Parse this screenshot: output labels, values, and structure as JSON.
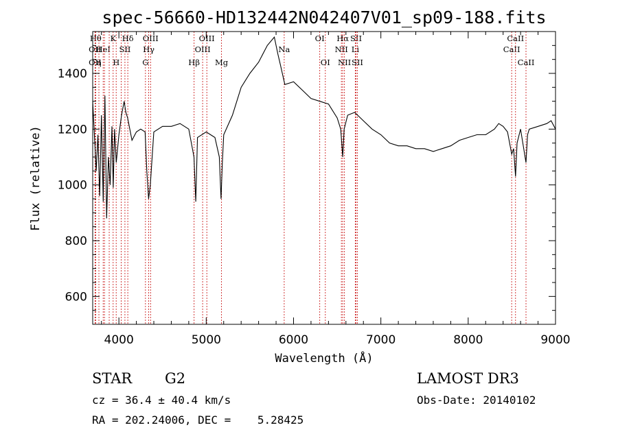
{
  "chart_data": {
    "type": "line",
    "title": "spec-56660-HD132442N042407V01_sp09-188.fits",
    "xlabel": "Wavelength (Å)",
    "ylabel": "Flux (relative)",
    "xlim": [
      3700,
      9000
    ],
    "ylim": [
      500,
      1550
    ],
    "x_ticks": [
      4000,
      5000,
      6000,
      7000,
      8000,
      9000
    ],
    "y_ticks": [
      600,
      800,
      1000,
      1200,
      1400
    ],
    "grid": false,
    "series": [
      {
        "name": "",
        "x": [
          3700,
          3740,
          3760,
          3780,
          3800,
          3820,
          3840,
          3860,
          3880,
          3900,
          3920,
          3935,
          3950,
          3970,
          4000,
          4030,
          4060,
          4080,
          4100,
          4150,
          4200,
          4250,
          4300,
          4320,
          4340,
          4360,
          4400,
          4500,
          4600,
          4700,
          4800,
          4860,
          4880,
          4900,
          5000,
          5050,
          5100,
          5150,
          5170,
          5185,
          5200,
          5300,
          5400,
          5500,
          5600,
          5700,
          5780,
          5820,
          5850,
          5900,
          6000,
          6100,
          6200,
          6300,
          6400,
          6500,
          6540,
          6563,
          6580,
          6620,
          6700,
          6800,
          6900,
          7000,
          7100,
          7200,
          7300,
          7400,
          7500,
          7600,
          7700,
          7800,
          7900,
          8000,
          8100,
          8200,
          8300,
          8350,
          8400,
          8450,
          8498,
          8520,
          8542,
          8560,
          8600,
          8662,
          8680,
          8700,
          8800,
          8900,
          8950,
          9000
        ],
        "values": [
          1300,
          1050,
          1180,
          960,
          1250,
          940,
          1320,
          880,
          1100,
          1000,
          1210,
          990,
          1200,
          1080,
          1180,
          1250,
          1300,
          1260,
          1240,
          1160,
          1190,
          1200,
          1190,
          1050,
          950,
          1000,
          1190,
          1210,
          1210,
          1220,
          1200,
          1100,
          940,
          1170,
          1190,
          1180,
          1170,
          1100,
          950,
          1080,
          1180,
          1250,
          1350,
          1400,
          1440,
          1500,
          1530,
          1470,
          1430,
          1360,
          1370,
          1340,
          1310,
          1300,
          1290,
          1240,
          1200,
          1100,
          1200,
          1250,
          1260,
          1230,
          1200,
          1180,
          1150,
          1140,
          1140,
          1130,
          1130,
          1120,
          1130,
          1140,
          1160,
          1170,
          1180,
          1180,
          1200,
          1220,
          1210,
          1190,
          1110,
          1130,
          1030,
          1150,
          1200,
          1080,
          1180,
          1200,
          1210,
          1220,
          1230,
          1200
        ]
      }
    ],
    "line_markers": [
      {
        "x": 3734,
        "label": "Hθ",
        "row": 0
      },
      {
        "x": 3727,
        "label": "OII",
        "row": 1
      },
      {
        "x": 3727,
        "label": "OII",
        "row": 2
      },
      {
        "x": 3771,
        "label": "η",
        "row": 2
      },
      {
        "x": 3820,
        "label": "HeI",
        "row": 1
      },
      {
        "x": 3835,
        "label": "",
        "row": -1
      },
      {
        "x": 3889,
        "label": "",
        "row": -1
      },
      {
        "x": 3934,
        "label": "K",
        "row": 0
      },
      {
        "x": 3969,
        "label": "H",
        "row": 2
      },
      {
        "x": 4026,
        "label": "",
        "row": -1
      },
      {
        "x": 4069,
        "label": "SII",
        "row": 1
      },
      {
        "x": 4102,
        "label": "Hδ",
        "row": 0
      },
      {
        "x": 4304,
        "label": "G",
        "row": 2
      },
      {
        "x": 4341,
        "label": "Hγ",
        "row": 1
      },
      {
        "x": 4363,
        "label": "OIII",
        "row": 0
      },
      {
        "x": 4861,
        "label": "Hβ",
        "row": 2
      },
      {
        "x": 4959,
        "label": "OIII",
        "row": 1
      },
      {
        "x": 5007,
        "label": "OIII",
        "row": 0
      },
      {
        "x": 5175,
        "label": "Mg",
        "row": 2
      },
      {
        "x": 5893,
        "label": "Na",
        "row": 1
      },
      {
        "x": 6300,
        "label": "OI",
        "row": 0
      },
      {
        "x": 6364,
        "label": "OI",
        "row": 2
      },
      {
        "x": 6548,
        "label": "NII",
        "row": 1
      },
      {
        "x": 6563,
        "label": "Hα",
        "row": 0
      },
      {
        "x": 6583,
        "label": "NII",
        "row": 2
      },
      {
        "x": 6707,
        "label": "Li",
        "row": 1
      },
      {
        "x": 6716,
        "label": "SII",
        "row": 0
      },
      {
        "x": 6731,
        "label": "SII",
        "row": 2
      },
      {
        "x": 8498,
        "label": "CaII",
        "row": 1
      },
      {
        "x": 8542,
        "label": "CaII",
        "row": 0
      },
      {
        "x": 8662,
        "label": "CaII",
        "row": 2
      }
    ]
  },
  "info": {
    "object_class": "STAR",
    "subclass": "G2",
    "survey": "LAMOST DR3",
    "cz": "cz = 36.4 ± 40.4 km/s",
    "obs_date": "Obs-Date: 20140102",
    "coords": "RA = 202.24006, DEC =    5.28425"
  },
  "colors": {
    "spectrum": "#000000",
    "marker_line": "#cc2222",
    "background": "#ffffff"
  }
}
